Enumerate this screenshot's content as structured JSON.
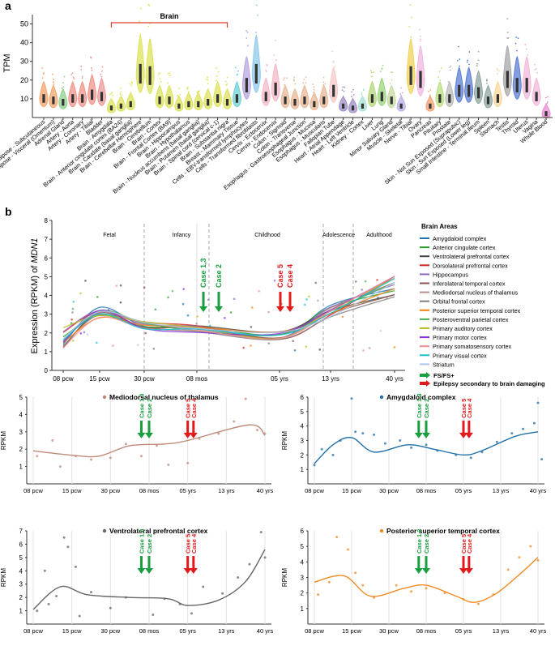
{
  "panel_labels": {
    "a": "a",
    "b": "b"
  },
  "chart_data": [
    {
      "id": "gtex",
      "type": "violin",
      "ylabel": "TPM",
      "ylim": [
        0,
        55
      ],
      "yticks": [
        10,
        20,
        30,
        40,
        50
      ],
      "bracket_label": "Brain",
      "categories": [
        "Adipose - Subcutaneous",
        "Adipose - Visceral (Omentum)",
        "Adrenal Gland",
        "Artery - Aorta",
        "Artery - Coronary",
        "Artery - Tibial",
        "Bladder",
        "Brain - Amygdala",
        "Brain - Anterior cingulate cortex (BA24)",
        "Brain - Caudate (basal ganglia)",
        "Brain - Cerebellar Hemisphere",
        "Brain - Cerebellum",
        "Brain - Cortex",
        "Brain - Frontal Cortex (BA9)",
        "Brain - Hippocampus",
        "Brain - Hypothalamus",
        "Brain - Nucleus accumbens (basal ganglia)",
        "Brain - Putamen (basal ganglia)",
        "Brain - Spinal cord (cervical c-1)",
        "Brain - Substantia nigra",
        "Breast - Mammary Tissue",
        "Cells - EBV-transformed lymphocytes",
        "Cells - Transformed fibroblasts",
        "Cervix - Ectocervix",
        "Cervix - Endocervix",
        "Colon - Sigmoid",
        "Colon - Transverse",
        "Esophagus - Gastroesophageal Junction",
        "Esophagus - Mucosa",
        "Esophagus - Muscularis",
        "Fallopian Tube",
        "Heart - Atrial Appendage",
        "Heart - Left Ventricle",
        "Kidney - Cortex",
        "Liver",
        "Lung",
        "Minor Salivary Gland",
        "Muscle - Skeletal",
        "Nerve - Tibial",
        "Ovary",
        "Pancreas",
        "Pituitary",
        "Prostate",
        "Skin - Not Sun Exposed (Suprapubic)",
        "Skin - Sun Exposed (Lower leg)",
        "Small Intestine - Terminal Ileum",
        "Spleen",
        "Stomach",
        "Testis",
        "Thyroid",
        "Uterus",
        "Vagina",
        "Whole Blood"
      ],
      "medians": [
        10,
        9,
        8,
        10,
        10,
        12,
        11,
        5,
        6,
        7,
        23,
        22,
        9,
        9,
        6,
        7,
        7,
        8,
        10,
        8,
        10,
        17,
        23,
        11,
        15,
        9,
        8,
        9,
        7,
        9,
        14,
        6,
        5,
        6,
        10,
        11,
        9,
        6,
        22,
        20,
        6,
        10,
        10,
        14,
        14,
        13,
        9,
        10,
        20,
        17,
        17,
        11,
        2
      ],
      "colors": [
        "#f4a46c",
        "#f4a46c",
        "#8fd18e",
        "#f2938a",
        "#f2938a",
        "#f2938a",
        "#ee9a9a",
        "#dde35c",
        "#dde35c",
        "#dde35c",
        "#dde35c",
        "#dde35c",
        "#dde35c",
        "#dde35c",
        "#dde35c",
        "#dde35c",
        "#dde35c",
        "#dde35c",
        "#dde35c",
        "#dde35c",
        "#6fd0d6",
        "#b9a6e0",
        "#8fc9ea",
        "#f4b8c8",
        "#f4b8c8",
        "#e9b896",
        "#e9b896",
        "#e9b896",
        "#e9b896",
        "#e9b896",
        "#f6c9c9",
        "#9f8ec8",
        "#9f8ec8",
        "#a6e3d4",
        "#b5d67e",
        "#9ad67c",
        "#c5dba0",
        "#bcaee6",
        "#f0d35a",
        "#f2b8e0",
        "#f2a06d",
        "#b8e07d",
        "#bcbcbc",
        "#5b7fd6",
        "#5b7fd6",
        "#8fa5a0",
        "#8fa5a0",
        "#f8d79a",
        "#a8a8a8",
        "#5b7fd6",
        "#f2b8d8",
        "#f2b8d8",
        "#e78ad4"
      ]
    },
    {
      "id": "mdn1-all",
      "type": "line",
      "title_prefix": "Expression (RPKM) of ",
      "title_gene": "MDN1",
      "ylim": [
        0,
        8
      ],
      "yticks": [
        0,
        1,
        2,
        3,
        4,
        5,
        6,
        7,
        8
      ],
      "x_ticks": [
        "08 pcw",
        "15 pcw",
        "30 pcw",
        "08 mos",
        "05 yrs",
        "13 yrs",
        "40 yrs"
      ],
      "stages": [
        "Fetal",
        "Infancy",
        "Childhood",
        "Adolescence",
        "Adulthood"
      ],
      "annotations": [
        {
          "label": "Case 1,3",
          "group": "FS/FS+"
        },
        {
          "label": "Case 2",
          "group": "FS/FS+"
        },
        {
          "label": "Case 5",
          "group": "Epilepsy secondary to brain damaging"
        },
        {
          "label": "Case 4",
          "group": "Epilepsy secondary to brain damaging"
        }
      ],
      "legend_title": "Brain Areas",
      "legend_items": [
        {
          "name": "Amygdaloid complex",
          "color": "#1f77b4"
        },
        {
          "name": "Anterior cingulate cortex",
          "color": "#2ca02c"
        },
        {
          "name": "Ventrolateral prefrontal cortex",
          "color": "#444444"
        },
        {
          "name": "Dorsolateral prefrontal cortex",
          "color": "#d62728"
        },
        {
          "name": "Hippocampus",
          "color": "#9467bd"
        },
        {
          "name": "Inferolateral temporal cortex",
          "color": "#8c564b"
        },
        {
          "name": "Mediodorsal nucleus of thalamus",
          "color": "#bc8f8f"
        },
        {
          "name": "Orbital frontal cortex",
          "color": "#7f7f7f"
        },
        {
          "name": "Posterior superior temporal cortex",
          "color": "#ff7f0e"
        },
        {
          "name": "Posteroventral parietal cortex",
          "color": "#4caf50"
        },
        {
          "name": "Primary auditory cortex",
          "color": "#bcbd22"
        },
        {
          "name": "Primary motor cortex",
          "color": "#8a2be2"
        },
        {
          "name": "Primary somatosensory cortex",
          "color": "#f28e8e"
        },
        {
          "name": "Primary visual cortex",
          "color": "#17becf"
        },
        {
          "name": "Striatum",
          "color": "#aec7e8"
        }
      ],
      "arrow_legend": [
        {
          "label": "FS/FS+",
          "color": "#1a9e3f"
        },
        {
          "label": "Epilepsy secondary to brain damaging",
          "color": "#e31a1c"
        }
      ]
    },
    {
      "id": "mdn1-md",
      "type": "line",
      "title": "Mediodorsal nucleus of thalamus",
      "color": "#bf8a78",
      "ylabel": "RPKM",
      "ylim": [
        0,
        5
      ],
      "yticks": [
        1,
        2,
        3,
        4,
        5
      ],
      "x": [
        0,
        1,
        2,
        3,
        4,
        5,
        6
      ],
      "x_labels": [
        "08 pcw",
        "15 pcw",
        "30 pcw",
        "08 mos",
        "05 yrs",
        "13 yrs",
        "40 yrs"
      ],
      "curve": [
        1.9,
        1.65,
        1.6,
        2.2,
        2.3,
        2.5,
        3.4,
        2.8
      ],
      "curve_x": [
        0,
        1,
        1.7,
        2.5,
        3.4,
        4.0,
        5.6,
        6
      ],
      "points": [
        [
          0.1,
          1.6
        ],
        [
          0.5,
          2.5
        ],
        [
          0.7,
          1.0
        ],
        [
          1.1,
          1.6
        ],
        [
          1.5,
          1.4
        ],
        [
          2.0,
          1.5
        ],
        [
          2.4,
          2.3
        ],
        [
          2.8,
          1.6
        ],
        [
          3.2,
          2.2
        ],
        [
          3.5,
          1.1
        ],
        [
          4.0,
          1.2
        ],
        [
          4.3,
          2.6
        ],
        [
          4.8,
          2.9
        ],
        [
          5.2,
          3.6
        ],
        [
          5.5,
          4.9
        ],
        [
          5.8,
          3.1
        ],
        [
          6.0,
          2.9
        ]
      ],
      "cases": [
        "Case 1,3",
        "Case 2",
        "Case 5",
        "Case 4"
      ]
    },
    {
      "id": "mdn1-amy",
      "type": "line",
      "title": "Amygdaloid complex",
      "color": "#1f6fa8",
      "ylabel": "RPKM",
      "ylim": [
        0,
        6
      ],
      "yticks": [
        1,
        2,
        3,
        4,
        5,
        6
      ],
      "x_labels": [
        "08 pcw",
        "15 pcw",
        "30 pcw",
        "08 mos",
        "05 yrs",
        "13 yrs",
        "40 yrs"
      ],
      "curve": [
        1.4,
        2.7,
        3.2,
        2.2,
        2.7,
        2.4,
        2.0,
        2.3,
        3.3,
        3.6
      ],
      "curve_x": [
        0,
        0.5,
        1,
        1.6,
        2.5,
        3.2,
        4,
        4.5,
        5.4,
        6
      ],
      "points": [
        [
          0,
          1.3
        ],
        [
          0.2,
          2.4
        ],
        [
          0.5,
          2.0
        ],
        [
          0.7,
          3.0
        ],
        [
          1.0,
          5.9
        ],
        [
          1.1,
          3.6
        ],
        [
          1.3,
          3.5
        ],
        [
          1.6,
          3.4
        ],
        [
          1.9,
          2.8
        ],
        [
          2.3,
          3.0
        ],
        [
          2.6,
          2.5
        ],
        [
          3.0,
          2.7
        ],
        [
          3.3,
          2.3
        ],
        [
          3.8,
          2.0
        ],
        [
          4.2,
          1.8
        ],
        [
          4.5,
          2.2
        ],
        [
          4.9,
          2.9
        ],
        [
          5.3,
          3.5
        ],
        [
          5.6,
          3.8
        ],
        [
          5.9,
          4.2
        ],
        [
          6.0,
          5.6
        ],
        [
          6.1,
          1.7
        ]
      ],
      "cases": [
        "Case 1,3",
        "Case 2",
        "Case 5",
        "Case 4"
      ]
    },
    {
      "id": "mdn1-vlpfc",
      "type": "line",
      "title": "Ventrolateral prefrontal cortex",
      "color": "#666666",
      "ylabel": "RPKM",
      "ylim": [
        0,
        7
      ],
      "yticks": [
        1,
        2,
        3,
        4,
        5,
        6,
        7
      ],
      "x_labels": [
        "08 pcw",
        "15 pcw",
        "30 pcw",
        "08 mos",
        "05 yrs",
        "13 yrs",
        "40 yrs"
      ],
      "curve": [
        1.1,
        2.8,
        2.2,
        2.0,
        1.9,
        1.4,
        1.8,
        3.2,
        5.6
      ],
      "curve_x": [
        0,
        0.7,
        1.4,
        2.5,
        3.5,
        4,
        4.8,
        5.5,
        6
      ],
      "points": [
        [
          0.1,
          1.0
        ],
        [
          0.3,
          4.0
        ],
        [
          0.4,
          1.5
        ],
        [
          0.6,
          2.1
        ],
        [
          0.8,
          6.5
        ],
        [
          0.9,
          5.8
        ],
        [
          1.1,
          4.3
        ],
        [
          1.2,
          0.6
        ],
        [
          1.5,
          2.4
        ],
        [
          2.0,
          1.2
        ],
        [
          2.4,
          2.0
        ],
        [
          3.1,
          0.7
        ],
        [
          3.4,
          1.9
        ],
        [
          3.8,
          1.5
        ],
        [
          4.1,
          0.8
        ],
        [
          4.4,
          2.8
        ],
        [
          4.9,
          2.3
        ],
        [
          5.3,
          3.5
        ],
        [
          5.6,
          4.5
        ],
        [
          5.9,
          6.9
        ],
        [
          6.0,
          5.0
        ]
      ],
      "cases": [
        "Case 1,3",
        "Case 2",
        "Case 5",
        "Case 4"
      ]
    },
    {
      "id": "mdn1-pstc",
      "type": "line",
      "title": "Posterior superior temporal cortex",
      "color": "#f08a24",
      "ylabel": "RPKM",
      "ylim": [
        0,
        6
      ],
      "yticks": [
        1,
        2,
        3,
        4,
        5,
        6
      ],
      "x_labels": [
        "08 pcw",
        "15 pcw",
        "30 pcw",
        "08 mos",
        "05 yrs",
        "13 yrs",
        "40 yrs"
      ],
      "curve": [
        2.7,
        3.1,
        1.8,
        2.3,
        2.5,
        1.8,
        1.4,
        2.0,
        3.4,
        4.3
      ],
      "curve_x": [
        0,
        0.8,
        1.5,
        2.4,
        3.0,
        3.8,
        4.3,
        4.9,
        5.6,
        6
      ],
      "points": [
        [
          0.1,
          1.9
        ],
        [
          0.4,
          2.7
        ],
        [
          0.6,
          5.6
        ],
        [
          0.9,
          4.8
        ],
        [
          1.1,
          3.3
        ],
        [
          1.3,
          2.5
        ],
        [
          1.6,
          1.7
        ],
        [
          2.2,
          2.5
        ],
        [
          2.6,
          2.1
        ],
        [
          3.0,
          2.3
        ],
        [
          3.5,
          2.0
        ],
        [
          4.0,
          1.6
        ],
        [
          4.4,
          1.3
        ],
        [
          4.8,
          1.9
        ],
        [
          5.2,
          3.5
        ],
        [
          5.5,
          4.3
        ],
        [
          5.8,
          5.0
        ],
        [
          6.0,
          4.1
        ]
      ],
      "cases": [
        "Case 1,3",
        "Case 2",
        "Case 5",
        "Case 4"
      ]
    }
  ]
}
